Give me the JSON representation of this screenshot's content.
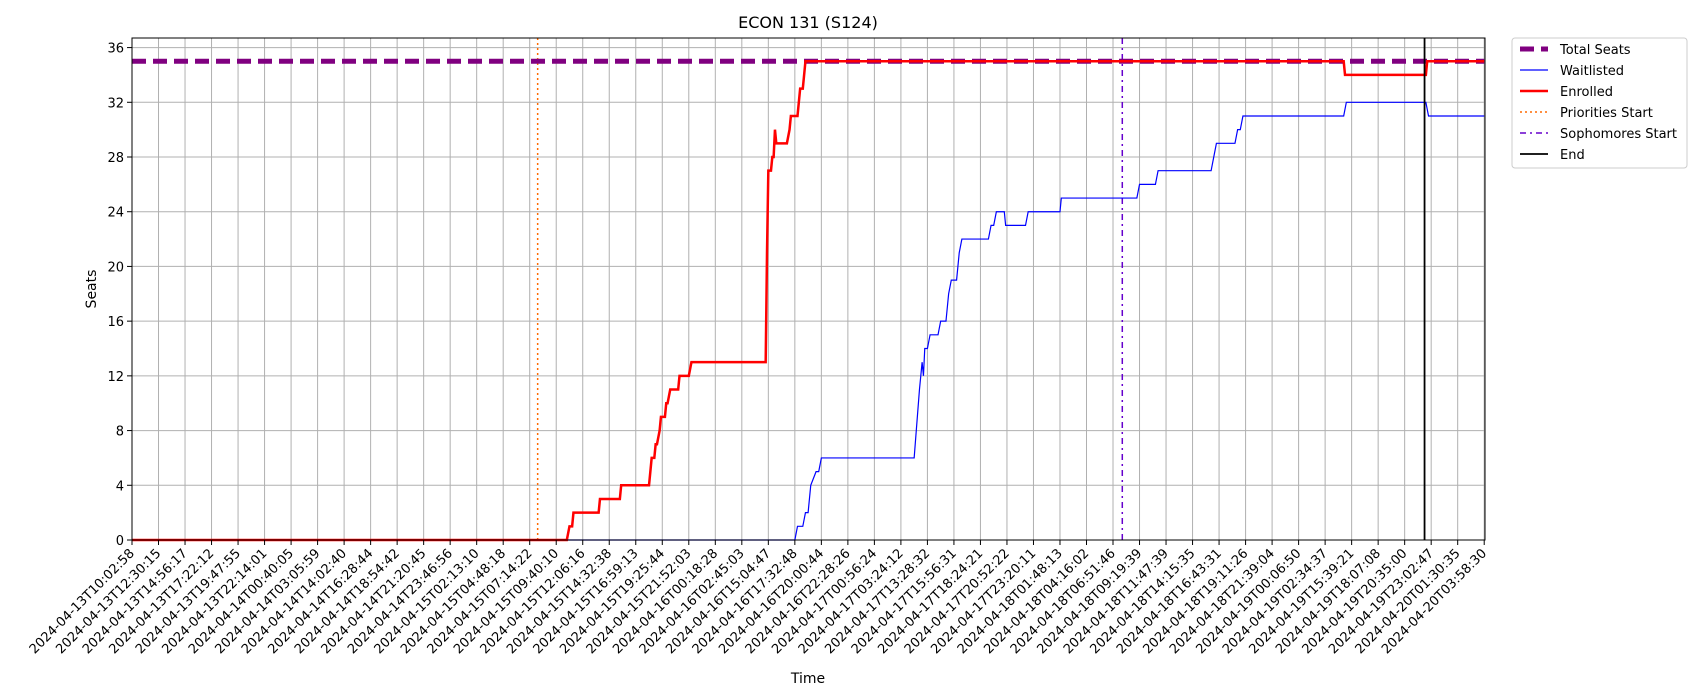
{
  "chart_data": {
    "type": "line",
    "title": "ECON 131 (S124)",
    "xlabel": "Time",
    "ylabel": "Seats",
    "ylim": [
      0,
      36.7
    ],
    "yticks": [
      0,
      4,
      8,
      12,
      16,
      20,
      24,
      28,
      32,
      36
    ],
    "grid": true,
    "legend_position": "outside-top-right",
    "x_tick_labels": [
      "2024-04-13T10:02:58",
      "2024-04-13T12:30:15",
      "2024-04-13T14:56:17",
      "2024-04-13T17:22:12",
      "2024-04-13T19:47:55",
      "2024-04-13T22:14:01",
      "2024-04-14T00:40:05",
      "2024-04-14T03:05:59",
      "2024-04-14T14:02:40",
      "2024-04-14T16:28:44",
      "2024-04-14T18:54:42",
      "2024-04-14T21:20:45",
      "2024-04-14T23:46:56",
      "2024-04-15T02:13:10",
      "2024-04-15T04:48:18",
      "2024-04-15T07:14:22",
      "2024-04-15T09:40:10",
      "2024-04-15T12:06:16",
      "2024-04-15T14:32:38",
      "2024-04-15T16:59:13",
      "2024-04-15T19:25:44",
      "2024-04-15T21:52:03",
      "2024-04-16T00:18:28",
      "2024-04-16T02:45:03",
      "2024-04-16T15:04:47",
      "2024-04-16T17:32:48",
      "2024-04-16T20:00:44",
      "2024-04-16T22:28:26",
      "2024-04-17T00:56:24",
      "2024-04-17T03:24:12",
      "2024-04-17T13:28:32",
      "2024-04-17T15:56:31",
      "2024-04-17T18:24:21",
      "2024-04-17T20:52:22",
      "2024-04-17T23:20:11",
      "2024-04-18T01:48:13",
      "2024-04-18T04:16:02",
      "2024-04-18T06:51:46",
      "2024-04-18T09:19:39",
      "2024-04-18T11:47:39",
      "2024-04-18T14:15:35",
      "2024-04-18T16:43:31",
      "2024-04-18T19:11:26",
      "2024-04-18T21:39:04",
      "2024-04-19T00:06:50",
      "2024-04-19T02:34:37",
      "2024-04-19T15:39:21",
      "2024-04-19T18:07:08",
      "2024-04-19T20:35:00",
      "2024-04-19T23:02:47",
      "2024-04-20T01:30:35",
      "2024-04-20T03:58:30"
    ],
    "series": [
      {
        "name": "Total Seats",
        "color": "#800080",
        "style": "dashed-thick",
        "points": [
          [
            0,
            35
          ],
          [
            51,
            35
          ]
        ]
      },
      {
        "name": "Waitlisted",
        "color": "#0000ff",
        "style": "solid-thin",
        "points": [
          [
            0,
            0
          ],
          [
            25,
            0
          ],
          [
            25.1,
            1
          ],
          [
            25.3,
            1
          ],
          [
            25.4,
            2
          ],
          [
            25.5,
            2
          ],
          [
            25.6,
            4
          ],
          [
            25.8,
            5
          ],
          [
            25.9,
            5
          ],
          [
            26.0,
            6
          ],
          [
            29.5,
            6
          ],
          [
            29.7,
            11
          ],
          [
            29.8,
            13
          ],
          [
            29.85,
            12
          ],
          [
            29.9,
            14
          ],
          [
            30.0,
            14
          ],
          [
            30.1,
            15
          ],
          [
            30.4,
            15
          ],
          [
            30.5,
            16
          ],
          [
            30.7,
            16
          ],
          [
            30.8,
            18
          ],
          [
            30.9,
            19
          ],
          [
            31.1,
            19
          ],
          [
            31.2,
            21
          ],
          [
            31.3,
            22
          ],
          [
            32.3,
            22
          ],
          [
            32.4,
            23
          ],
          [
            32.5,
            23
          ],
          [
            32.6,
            24
          ],
          [
            32.9,
            24
          ],
          [
            32.95,
            23
          ],
          [
            33.7,
            23
          ],
          [
            33.8,
            24
          ],
          [
            35.0,
            24
          ],
          [
            35.05,
            25
          ],
          [
            37.9,
            25
          ],
          [
            38.0,
            26
          ],
          [
            38.6,
            26
          ],
          [
            38.7,
            27
          ],
          [
            40.7,
            27
          ],
          [
            40.8,
            28
          ],
          [
            40.9,
            29
          ],
          [
            41.6,
            29
          ],
          [
            41.7,
            30
          ],
          [
            41.8,
            30
          ],
          [
            41.9,
            31
          ],
          [
            45.7,
            31
          ],
          [
            45.8,
            32
          ],
          [
            48.8,
            32
          ],
          [
            48.9,
            31
          ],
          [
            51,
            31
          ]
        ]
      },
      {
        "name": "Enrolled",
        "color": "#ff0000",
        "style": "solid-thick",
        "points": [
          [
            0,
            0
          ],
          [
            16.4,
            0
          ],
          [
            16.5,
            1
          ],
          [
            16.6,
            1
          ],
          [
            16.65,
            2
          ],
          [
            17.6,
            2
          ],
          [
            17.65,
            3
          ],
          [
            18.4,
            3
          ],
          [
            18.45,
            4
          ],
          [
            19.5,
            4
          ],
          [
            19.55,
            5
          ],
          [
            19.6,
            6
          ],
          [
            19.7,
            6
          ],
          [
            19.75,
            7
          ],
          [
            19.8,
            7
          ],
          [
            19.9,
            8
          ],
          [
            19.95,
            9
          ],
          [
            20.1,
            9
          ],
          [
            20.15,
            10
          ],
          [
            20.2,
            10
          ],
          [
            20.3,
            11
          ],
          [
            20.6,
            11
          ],
          [
            20.65,
            12
          ],
          [
            21.0,
            12
          ],
          [
            21.1,
            13
          ],
          [
            23.9,
            13
          ],
          [
            23.95,
            21
          ],
          [
            24.0,
            27
          ],
          [
            24.1,
            27
          ],
          [
            24.15,
            28
          ],
          [
            24.2,
            28
          ],
          [
            24.25,
            30
          ],
          [
            24.3,
            29
          ],
          [
            24.7,
            29
          ],
          [
            24.8,
            30
          ],
          [
            24.85,
            31
          ],
          [
            25.1,
            31
          ],
          [
            25.2,
            33
          ],
          [
            25.3,
            33
          ],
          [
            25.4,
            35
          ],
          [
            45.7,
            35
          ],
          [
            45.75,
            34
          ],
          [
            48.8,
            34
          ],
          [
            48.85,
            35
          ],
          [
            51,
            35
          ]
        ]
      },
      {
        "name": "Priorities Start",
        "color": "#ff6a00",
        "style": "dotted-vertical",
        "x": 15.3
      },
      {
        "name": "Sophomores Start",
        "color": "#6600cc",
        "style": "dashdot-vertical",
        "x": 37.35
      },
      {
        "name": "End",
        "color": "#000000",
        "style": "solid-vertical",
        "x": 48.75
      }
    ]
  }
}
